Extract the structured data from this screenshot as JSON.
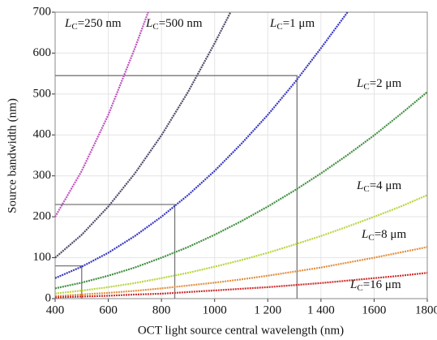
{
  "chart_data": {
    "type": "line",
    "x_label": "OCT light source central wavelength (nm)",
    "y_label": "Source bandwidth (nm)",
    "xlim": [
      400,
      1800
    ],
    "ylim": [
      0,
      700
    ],
    "xticks": [
      400,
      600,
      800,
      1000,
      {
        "value": 1200,
        "label": "1 200"
      },
      {
        "value": 1400,
        "label": "1 400"
      },
      1600,
      1800
    ],
    "yticks": [
      0,
      100,
      200,
      300,
      400,
      500,
      600,
      700
    ],
    "grid": true,
    "series": [
      {
        "name": "LC=250 nm",
        "color": "#c050c0",
        "x": [
          400,
          500,
          600,
          700,
          750
        ],
        "values": [
          200,
          312,
          449,
          612,
          700
        ]
      },
      {
        "name": "LC=500 nm",
        "color": "#4a4a6a",
        "x": [
          400,
          500,
          600,
          700,
          800,
          900,
          1000,
          1060
        ],
        "values": [
          100,
          156,
          225,
          306,
          399,
          505,
          624,
          700
        ]
      },
      {
        "name": "LC=1 μm",
        "color": "#3535c0",
        "x": [
          400,
          500,
          600,
          700,
          800,
          900,
          1000,
          1100,
          1200,
          1300,
          1400,
          1500
        ],
        "values": [
          50,
          78,
          112,
          153,
          200,
          253,
          312,
          378,
          449,
          527,
          612,
          700
        ]
      },
      {
        "name": "LC=2 μm",
        "color": "#3f8f3f",
        "x": [
          400,
          500,
          600,
          700,
          800,
          900,
          1000,
          1100,
          1200,
          1300,
          1400,
          1500,
          1600,
          1700,
          1800
        ],
        "values": [
          25,
          39,
          56,
          76,
          100,
          126,
          156,
          189,
          225,
          264,
          306,
          351,
          399,
          451,
          505
        ]
      },
      {
        "name": "LC=4 μm",
        "color": "#b8d640",
        "x": [
          400,
          500,
          600,
          700,
          800,
          900,
          1000,
          1100,
          1200,
          1300,
          1400,
          1500,
          1600,
          1700,
          1800
        ],
        "values": [
          12.5,
          19.5,
          28,
          38,
          50,
          63,
          78,
          94,
          112,
          132,
          153,
          176,
          200,
          225,
          253
        ]
      },
      {
        "name": "LC=8 μm",
        "color": "#e39040",
        "x": [
          400,
          500,
          600,
          700,
          800,
          900,
          1000,
          1100,
          1200,
          1300,
          1400,
          1500,
          1600,
          1700,
          1800
        ],
        "values": [
          6,
          10,
          14,
          19,
          25,
          32,
          39,
          47,
          56,
          66,
          76,
          88,
          100,
          113,
          126
        ]
      },
      {
        "name": "LC=16 μm",
        "color": "#d03030",
        "x": [
          400,
          500,
          600,
          700,
          800,
          900,
          1000,
          1100,
          1200,
          1300,
          1400,
          1500,
          1600,
          1700,
          1800
        ],
        "values": [
          3,
          5,
          7,
          10,
          12,
          16,
          20,
          24,
          28,
          33,
          38,
          44,
          50,
          56,
          63
        ]
      }
    ],
    "reference_points": [
      {
        "x": 1310,
        "y": 545
      },
      {
        "x": 850,
        "y": 230
      },
      {
        "x": 500,
        "y": 80
      }
    ]
  }
}
